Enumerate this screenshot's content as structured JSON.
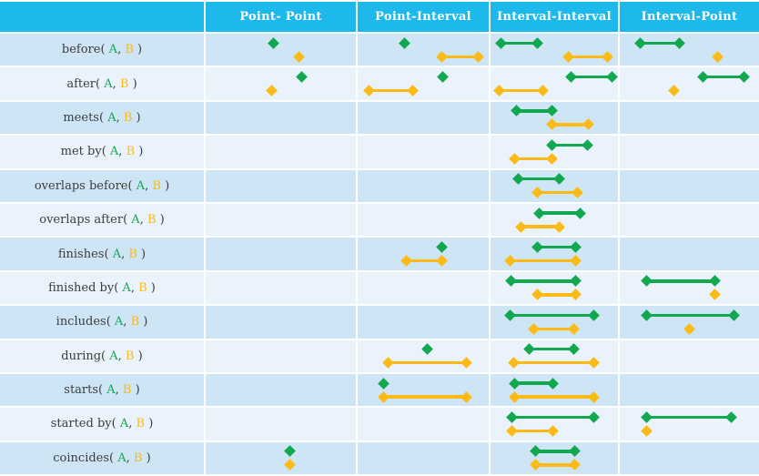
{
  "palette": {
    "header_bg": "#1db9ec",
    "header_text": "#ffffff",
    "row_dark": "#cee5f6",
    "row_light": "#eaf3fb",
    "green": "#12a850",
    "yellow": "#fcba16",
    "label_text": "#3c3c3c"
  },
  "legend": {
    "series_a": {
      "label": "A",
      "color": "#12a850",
      "track": "top"
    },
    "series_b": {
      "label": "B",
      "color": "#fcba16",
      "track": "bottom"
    }
  },
  "columns": [
    {
      "key": "pp",
      "label": "Point- Point"
    },
    {
      "key": "pi",
      "label": "Point-Interval"
    },
    {
      "key": "ii",
      "label": "Interval-Interval"
    },
    {
      "key": "ip",
      "label": "Interval-Point"
    }
  ],
  "label_format": {
    "open": "( ",
    "a": "A",
    "sep": ", ",
    "b": "B",
    "close": " )"
  },
  "rows": [
    {
      "name": "before",
      "cells": {
        "pp": [
          {
            "series": "A",
            "type": "point",
            "x": 0.45
          },
          {
            "series": "B",
            "type": "point",
            "x": 0.62
          }
        ],
        "pi": [
          {
            "series": "A",
            "type": "point",
            "x": 0.36
          },
          {
            "series": "B",
            "type": "interval",
            "x1": 0.64,
            "x2": 0.92
          }
        ],
        "ii": [
          {
            "series": "A",
            "type": "interval",
            "x1": 0.08,
            "x2": 0.37
          },
          {
            "series": "B",
            "type": "interval",
            "x1": 0.61,
            "x2": 0.92
          }
        ],
        "ip": [
          {
            "series": "A",
            "type": "interval",
            "x1": 0.15,
            "x2": 0.43
          },
          {
            "series": "B",
            "type": "point",
            "x": 0.7
          }
        ]
      }
    },
    {
      "name": "after",
      "cells": {
        "pp": [
          {
            "series": "A",
            "type": "point",
            "x": 0.64
          },
          {
            "series": "B",
            "type": "point",
            "x": 0.44
          }
        ],
        "pi": [
          {
            "series": "A",
            "type": "point",
            "x": 0.65
          },
          {
            "series": "B",
            "type": "interval",
            "x1": 0.09,
            "x2": 0.42
          }
        ],
        "ii": [
          {
            "series": "A",
            "type": "interval",
            "x1": 0.63,
            "x2": 0.95
          },
          {
            "series": "B",
            "type": "interval",
            "x1": 0.07,
            "x2": 0.41
          }
        ],
        "ip": [
          {
            "series": "A",
            "type": "interval",
            "x1": 0.6,
            "x2": 0.89
          },
          {
            "series": "B",
            "type": "point",
            "x": 0.39
          }
        ]
      }
    },
    {
      "name": "meets",
      "cells": {
        "ii": [
          {
            "series": "A",
            "type": "interval",
            "x1": 0.2,
            "x2": 0.48
          },
          {
            "series": "B",
            "type": "interval",
            "x1": 0.48,
            "x2": 0.77
          }
        ]
      }
    },
    {
      "name": "met by",
      "cells": {
        "ii": [
          {
            "series": "A",
            "type": "interval",
            "x1": 0.48,
            "x2": 0.76
          },
          {
            "series": "B",
            "type": "interval",
            "x1": 0.19,
            "x2": 0.48
          }
        ]
      }
    },
    {
      "name": "overlaps before",
      "cells": {
        "ii": [
          {
            "series": "A",
            "type": "interval",
            "x1": 0.22,
            "x2": 0.54
          },
          {
            "series": "B",
            "type": "interval",
            "x1": 0.37,
            "x2": 0.68
          }
        ]
      }
    },
    {
      "name": "overlaps after",
      "cells": {
        "ii": [
          {
            "series": "A",
            "type": "interval",
            "x1": 0.38,
            "x2": 0.7
          },
          {
            "series": "B",
            "type": "interval",
            "x1": 0.24,
            "x2": 0.54
          }
        ]
      }
    },
    {
      "name": "finishes",
      "cells": {
        "pi": [
          {
            "series": "A",
            "type": "point",
            "x": 0.64
          },
          {
            "series": "B",
            "type": "interval",
            "x1": 0.37,
            "x2": 0.64
          }
        ],
        "ii": [
          {
            "series": "A",
            "type": "interval",
            "x1": 0.37,
            "x2": 0.67
          },
          {
            "series": "B",
            "type": "interval",
            "x1": 0.15,
            "x2": 0.67
          }
        ]
      }
    },
    {
      "name": "finished by",
      "cells": {
        "ii": [
          {
            "series": "A",
            "type": "interval",
            "x1": 0.16,
            "x2": 0.67
          },
          {
            "series": "B",
            "type": "interval",
            "x1": 0.37,
            "x2": 0.67
          }
        ],
        "ip": [
          {
            "series": "A",
            "type": "interval",
            "x1": 0.19,
            "x2": 0.68
          },
          {
            "series": "B",
            "type": "point",
            "x": 0.68
          }
        ]
      }
    },
    {
      "name": "includes",
      "cells": {
        "ii": [
          {
            "series": "A",
            "type": "interval",
            "x1": 0.15,
            "x2": 0.81
          },
          {
            "series": "B",
            "type": "interval",
            "x1": 0.34,
            "x2": 0.65
          }
        ],
        "ip": [
          {
            "series": "A",
            "type": "interval",
            "x1": 0.19,
            "x2": 0.82
          },
          {
            "series": "B",
            "type": "point",
            "x": 0.5
          }
        ]
      }
    },
    {
      "name": "during",
      "cells": {
        "pi": [
          {
            "series": "A",
            "type": "point",
            "x": 0.53
          },
          {
            "series": "B",
            "type": "interval",
            "x1": 0.23,
            "x2": 0.83
          }
        ],
        "ii": [
          {
            "series": "A",
            "type": "interval",
            "x1": 0.3,
            "x2": 0.65
          },
          {
            "series": "B",
            "type": "interval",
            "x1": 0.18,
            "x2": 0.81
          }
        ]
      }
    },
    {
      "name": "starts",
      "cells": {
        "pi": [
          {
            "series": "A",
            "type": "point",
            "x": 0.2
          },
          {
            "series": "B",
            "type": "interval",
            "x1": 0.2,
            "x2": 0.83
          }
        ],
        "ii": [
          {
            "series": "A",
            "type": "interval",
            "x1": 0.19,
            "x2": 0.49
          },
          {
            "series": "B",
            "type": "interval",
            "x1": 0.19,
            "x2": 0.81
          }
        ]
      }
    },
    {
      "name": "started by",
      "cells": {
        "ii": [
          {
            "series": "A",
            "type": "interval",
            "x1": 0.17,
            "x2": 0.81
          },
          {
            "series": "B",
            "type": "interval",
            "x1": 0.17,
            "x2": 0.49
          }
        ],
        "ip": [
          {
            "series": "A",
            "type": "interval",
            "x1": 0.19,
            "x2": 0.8
          },
          {
            "series": "B",
            "type": "point",
            "x": 0.19
          }
        ]
      }
    },
    {
      "name": "coincides",
      "cells": {
        "pp": [
          {
            "series": "A",
            "type": "point",
            "x": 0.56
          },
          {
            "series": "B",
            "type": "point",
            "x": 0.56
          }
        ],
        "ii": [
          {
            "series": "A",
            "type": "interval",
            "x1": 0.35,
            "x2": 0.66
          },
          {
            "series": "B",
            "type": "interval",
            "x1": 0.35,
            "x2": 0.66
          }
        ]
      }
    }
  ]
}
